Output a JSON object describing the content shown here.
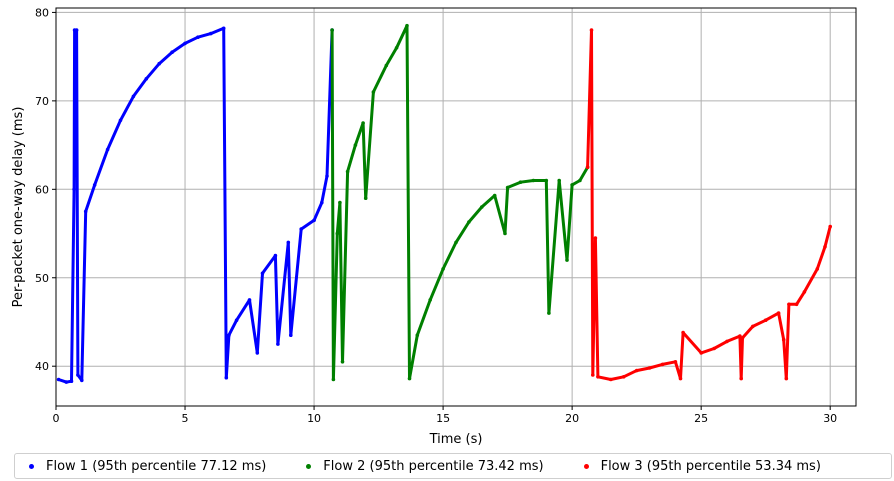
{
  "chart_data": {
    "type": "scatter",
    "xlabel": "Time (s)",
    "ylabel": "Per-packet one-way delay (ms)",
    "xlim": [
      0,
      31
    ],
    "ylim": [
      35.5,
      80.5
    ],
    "x_ticks": [
      "0",
      "5",
      "10",
      "15",
      "20",
      "25",
      "30"
    ],
    "y_ticks": [
      "40",
      "50",
      "60",
      "70",
      "80"
    ],
    "grid": true,
    "legend_placement": "bottom",
    "series": [
      {
        "name": "Flow 1 (95th percentile 77.12 ms)",
        "color": "#0000ff",
        "points": [
          [
            0.1,
            38.5
          ],
          [
            0.4,
            38.2
          ],
          [
            0.6,
            38.3
          ],
          [
            0.7,
            60
          ],
          [
            0.72,
            78
          ],
          [
            0.8,
            78
          ],
          [
            0.85,
            39
          ],
          [
            1.0,
            38.4
          ],
          [
            1.15,
            57.5
          ],
          [
            1.5,
            60.5
          ],
          [
            2.0,
            64.5
          ],
          [
            2.5,
            67.8
          ],
          [
            3.0,
            70.5
          ],
          [
            3.5,
            72.5
          ],
          [
            4.0,
            74.2
          ],
          [
            4.5,
            75.5
          ],
          [
            5.0,
            76.5
          ],
          [
            5.5,
            77.2
          ],
          [
            6.0,
            77.6
          ],
          [
            6.5,
            78.2
          ],
          [
            6.6,
            38.7
          ],
          [
            6.7,
            43.5
          ],
          [
            7.0,
            45.2
          ],
          [
            7.5,
            47.5
          ],
          [
            7.8,
            41.5
          ],
          [
            8.0,
            50.5
          ],
          [
            8.5,
            52.5
          ],
          [
            8.6,
            42.5
          ],
          [
            9.0,
            54.0
          ],
          [
            9.1,
            43.5
          ],
          [
            9.5,
            55.5
          ],
          [
            10.0,
            56.5
          ],
          [
            10.3,
            58.5
          ],
          [
            10.5,
            61.5
          ],
          [
            10.7,
            78.0
          ]
        ]
      },
      {
        "name": "Flow 2 (95th percentile 73.42 ms)",
        "color": "#008000",
        "points": [
          [
            10.7,
            78.0
          ],
          [
            10.75,
            38.5
          ],
          [
            10.9,
            55.0
          ],
          [
            11.0,
            58.5
          ],
          [
            11.1,
            40.5
          ],
          [
            11.3,
            62.0
          ],
          [
            11.6,
            65.0
          ],
          [
            11.9,
            67.5
          ],
          [
            12.0,
            59.0
          ],
          [
            12.3,
            71.0
          ],
          [
            12.8,
            74.0
          ],
          [
            13.2,
            76.0
          ],
          [
            13.6,
            78.5
          ],
          [
            13.7,
            38.6
          ],
          [
            14.0,
            43.5
          ],
          [
            14.5,
            47.5
          ],
          [
            15.0,
            51.0
          ],
          [
            15.5,
            54.0
          ],
          [
            16.0,
            56.3
          ],
          [
            16.5,
            58.0
          ],
          [
            17.0,
            59.3
          ],
          [
            17.4,
            55.0
          ],
          [
            17.5,
            60.2
          ],
          [
            18.0,
            60.8
          ],
          [
            18.5,
            61.0
          ],
          [
            19.0,
            61.0
          ],
          [
            19.1,
            46.0
          ],
          [
            19.5,
            61.0
          ],
          [
            19.8,
            52.0
          ],
          [
            20.0,
            60.5
          ],
          [
            20.3,
            61.0
          ],
          [
            20.6,
            62.5
          ]
        ]
      },
      {
        "name": "Flow 3 (95th percentile 53.34 ms)",
        "color": "#ff0000",
        "points": [
          [
            20.6,
            62.5
          ],
          [
            20.75,
            78.0
          ],
          [
            20.8,
            39.0
          ],
          [
            20.9,
            54.5
          ],
          [
            21.0,
            38.8
          ],
          [
            21.5,
            38.5
          ],
          [
            22.0,
            38.8
          ],
          [
            22.5,
            39.5
          ],
          [
            23.0,
            39.8
          ],
          [
            23.5,
            40.2
          ],
          [
            24.0,
            40.5
          ],
          [
            24.2,
            38.6
          ],
          [
            24.3,
            43.8
          ],
          [
            25.0,
            41.5
          ],
          [
            25.5,
            42.0
          ],
          [
            26.0,
            42.8
          ],
          [
            26.5,
            43.4
          ],
          [
            26.55,
            38.6
          ],
          [
            26.6,
            43.2
          ],
          [
            27.0,
            44.5
          ],
          [
            27.5,
            45.2
          ],
          [
            28.0,
            46.0
          ],
          [
            28.2,
            43.0
          ],
          [
            28.3,
            38.6
          ],
          [
            28.4,
            47.0
          ],
          [
            28.7,
            47.0
          ],
          [
            29.0,
            48.4
          ],
          [
            29.5,
            51.0
          ],
          [
            29.8,
            53.5
          ],
          [
            30.0,
            55.8
          ]
        ]
      }
    ]
  }
}
